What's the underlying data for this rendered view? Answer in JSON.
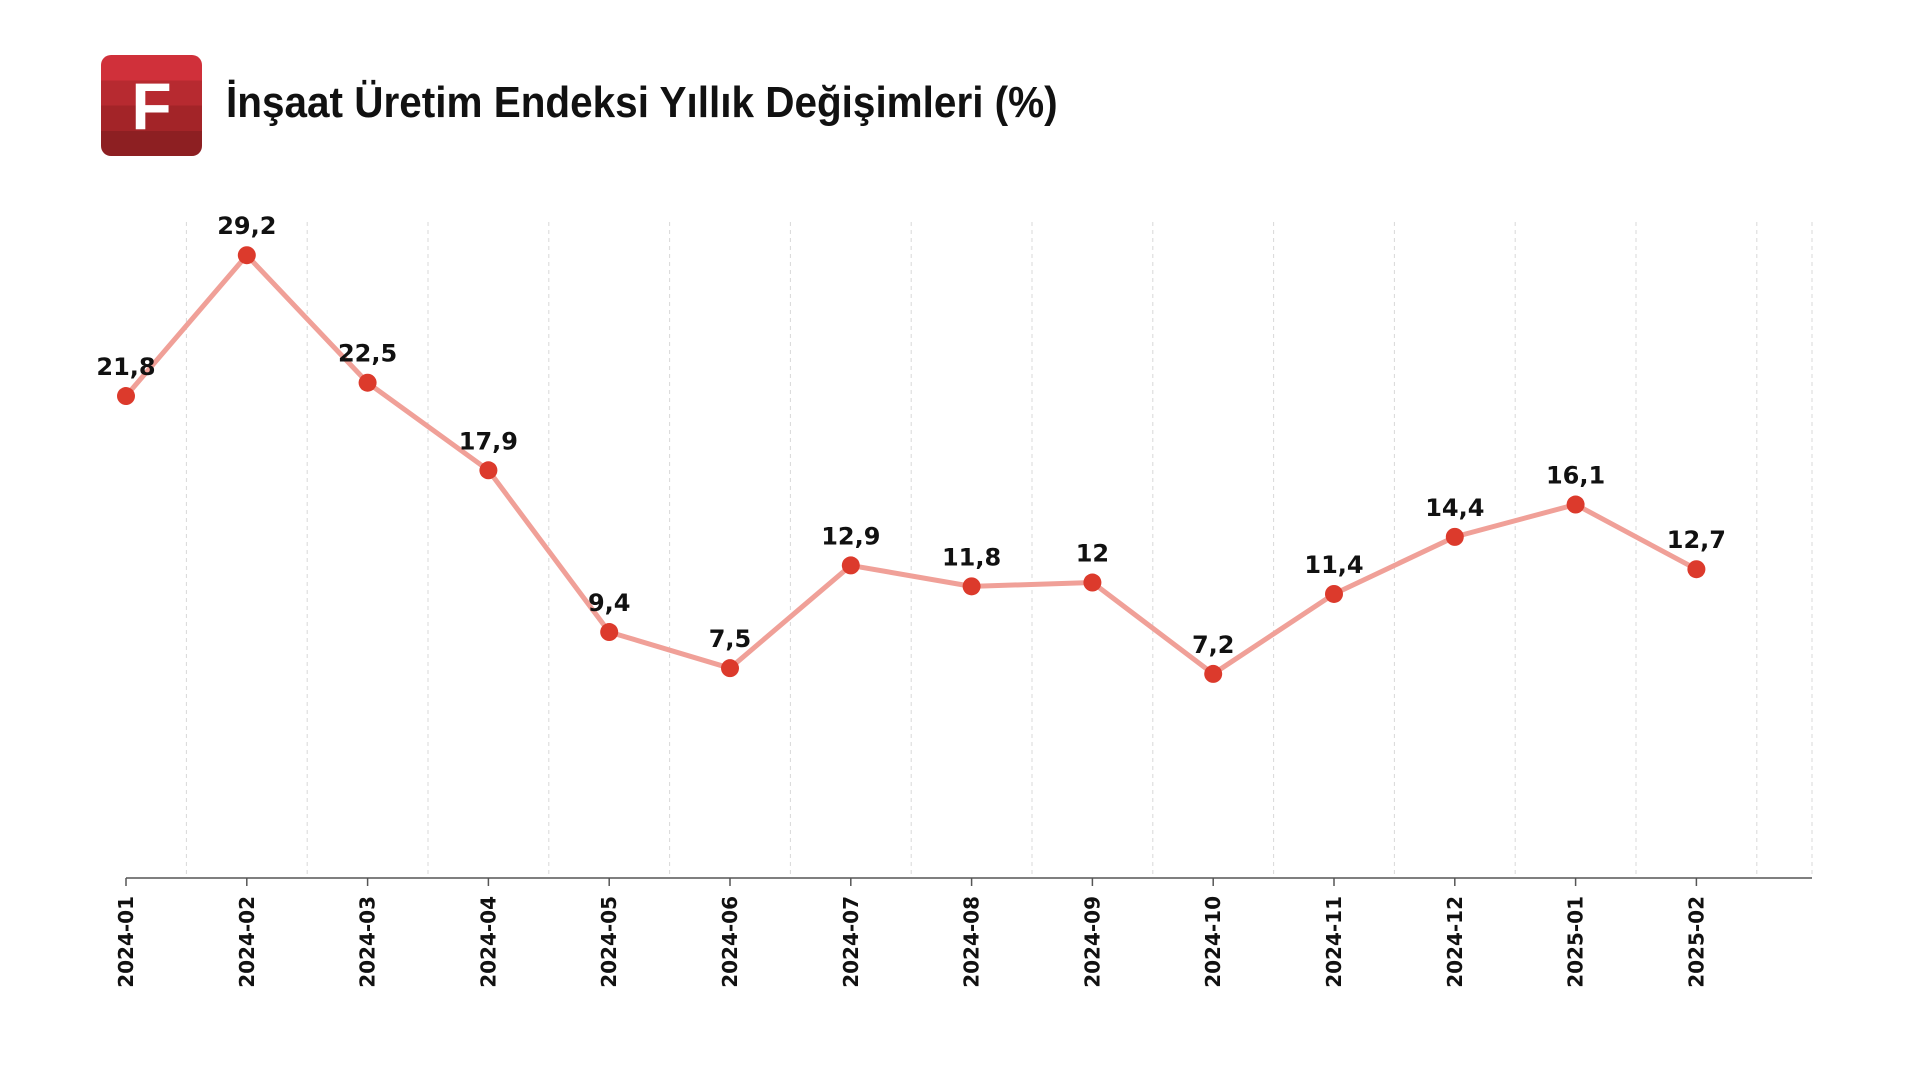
{
  "header": {
    "logo_letter": "F",
    "title": "İnşaat Üretim Endeksi Yıllık Değişimleri (%)"
  },
  "colors": {
    "line": "#f0a098",
    "marker": "#dc3a2c",
    "grid": "#d8d8d8",
    "axis": "#555555",
    "text": "#111111"
  },
  "chart_data": {
    "type": "line",
    "title": "İnşaat Üretim Endeksi Yıllık Değişimleri (%)",
    "categories": [
      "2024-01",
      "2024-02",
      "2024-03",
      "2024-04",
      "2024-05",
      "2024-06",
      "2024-07",
      "2024-08",
      "2024-09",
      "2024-10",
      "2024-11",
      "2024-12",
      "2025-01",
      "2025-02"
    ],
    "series": [
      {
        "values": [
          21.8,
          29.2,
          22.5,
          17.9,
          9.4,
          7.5,
          12.9,
          11.8,
          12,
          7.2,
          11.4,
          14.4,
          16.1,
          12.7
        ],
        "labels": [
          "21,8",
          "29,2",
          "22,5",
          "17,9",
          "9,4",
          "7,5",
          "12,9",
          "11,8",
          "12",
          "7,2",
          "11,4",
          "14,4",
          "16,1",
          "12,7"
        ]
      }
    ],
    "xlabel": "",
    "ylabel": "",
    "ylim": [
      -3,
      30
    ],
    "y_axis_visible": false,
    "grid": "vertical dashed",
    "tick_label_rotation": "vertical"
  }
}
